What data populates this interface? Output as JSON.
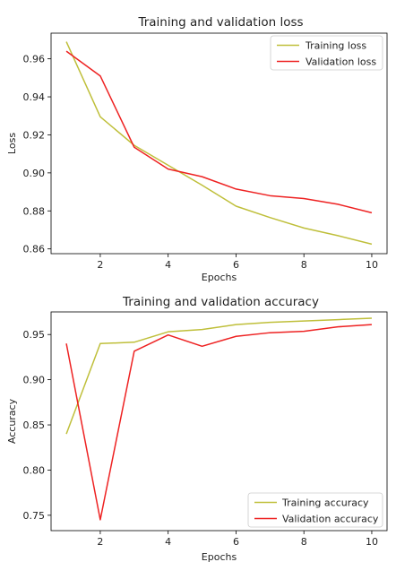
{
  "colors": {
    "training": "#bfbf3a",
    "validation": "#ee2222"
  },
  "chart_data": [
    {
      "type": "line",
      "title": "Training and validation loss",
      "xlabel": "Epochs",
      "ylabel": "Loss",
      "x": [
        1,
        2,
        3,
        4,
        5,
        6,
        7,
        8,
        9,
        10
      ],
      "xlim": [
        0.55,
        10.45
      ],
      "ylim": [
        0.8575,
        0.9735
      ],
      "xticks": [
        2,
        4,
        6,
        8,
        10
      ],
      "yticks": [
        0.86,
        0.88,
        0.9,
        0.92,
        0.94,
        0.96
      ],
      "ytick_labels": [
        "0.86",
        "0.88",
        "0.90",
        "0.92",
        "0.94",
        "0.96"
      ],
      "grid": false,
      "legend_position": "top-right",
      "series": [
        {
          "name": "Training loss",
          "color": "#bfbf3a",
          "values": [
            0.969,
            0.9295,
            0.9145,
            0.904,
            0.8935,
            0.8825,
            0.8765,
            0.871,
            0.867,
            0.8625
          ]
        },
        {
          "name": "Validation loss",
          "color": "#ee2222",
          "values": [
            0.964,
            0.951,
            0.9135,
            0.902,
            0.898,
            0.8915,
            0.888,
            0.8865,
            0.8835,
            0.879
          ]
        }
      ]
    },
    {
      "type": "line",
      "title": "Training and validation accuracy",
      "xlabel": "Epochs",
      "ylabel": "Accuracy",
      "x": [
        1,
        2,
        3,
        4,
        5,
        6,
        7,
        8,
        9,
        10
      ],
      "xlim": [
        0.55,
        10.45
      ],
      "ylim": [
        0.733,
        0.975
      ],
      "xticks": [
        2,
        4,
        6,
        8,
        10
      ],
      "yticks": [
        0.75,
        0.8,
        0.85,
        0.9,
        0.95
      ],
      "ytick_labels": [
        "0.75",
        "0.80",
        "0.85",
        "0.90",
        "0.95"
      ],
      "grid": false,
      "legend_position": "bottom-right",
      "series": [
        {
          "name": "Training accuracy",
          "color": "#bfbf3a",
          "values": [
            0.84,
            0.94,
            0.9415,
            0.953,
            0.9555,
            0.961,
            0.9635,
            0.965,
            0.9665,
            0.968
          ]
        },
        {
          "name": "Validation accuracy",
          "color": "#ee2222",
          "values": [
            0.94,
            0.745,
            0.9315,
            0.9495,
            0.937,
            0.948,
            0.952,
            0.9535,
            0.9585,
            0.961
          ]
        }
      ]
    }
  ]
}
